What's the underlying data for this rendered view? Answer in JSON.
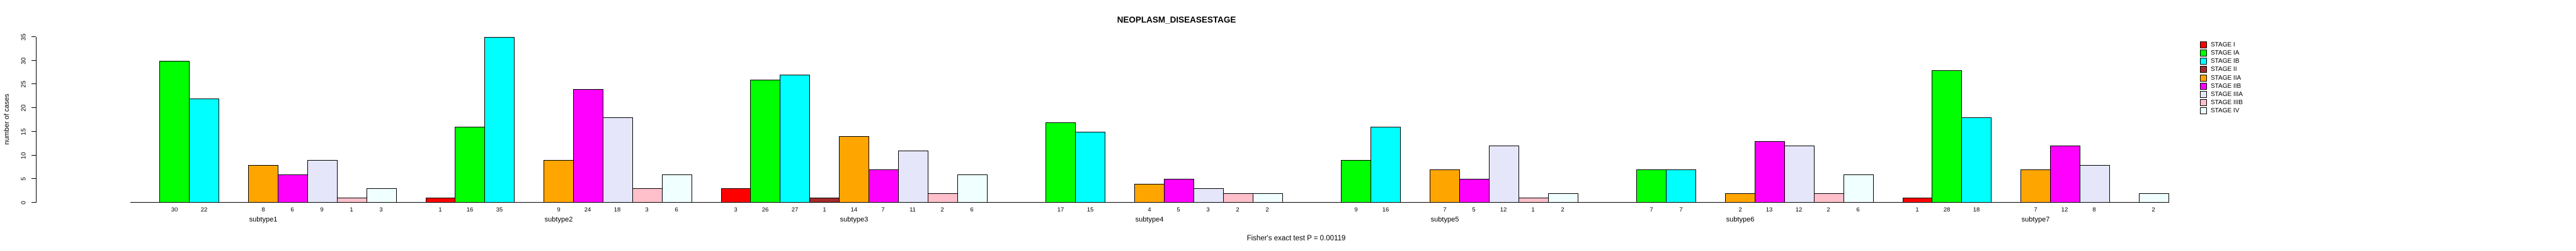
{
  "title": "NEOPLASM_DISEASESTAGE",
  "footer_note": "Fisher's exact test P = 0.00119",
  "chart_data": {
    "type": "bar",
    "title": "NEOPLASM_DISEASESTAGE",
    "ylabel": "number of cases",
    "xlabel": "",
    "ylim": [
      0,
      35
    ],
    "yticks": [
      0,
      5,
      10,
      15,
      20,
      25,
      30,
      35
    ],
    "grid": false,
    "legend_position": "right",
    "bar_value_labels_shown": true,
    "annotation": "Fisher's exact test P = 0.00119",
    "categories": [
      "subtype1",
      "subtype2",
      "subtype3",
      "subtype4",
      "subtype5",
      "subtype6",
      "subtype7"
    ],
    "series": [
      {
        "name": "STAGE I",
        "color": "#FF0000",
        "values": [
          0,
          1,
          3,
          0,
          0,
          0,
          1
        ]
      },
      {
        "name": "STAGE IA",
        "color": "#00FF00",
        "values": [
          30,
          16,
          26,
          17,
          9,
          7,
          28
        ]
      },
      {
        "name": "STAGE IB",
        "color": "#00FFFF",
        "values": [
          22,
          35,
          27,
          15,
          16,
          7,
          18
        ]
      },
      {
        "name": "STAGE II",
        "color": "#A52A2A",
        "values": [
          0,
          0,
          1,
          0,
          0,
          0,
          0
        ]
      },
      {
        "name": "STAGE IIA",
        "color": "#FFA500",
        "values": [
          8,
          9,
          14,
          4,
          7,
          2,
          7
        ]
      },
      {
        "name": "STAGE IIB",
        "color": "#FF00FF",
        "values": [
          6,
          24,
          7,
          5,
          5,
          13,
          12
        ]
      },
      {
        "name": "STAGE IIIA",
        "color": "#E6E6FA",
        "values": [
          9,
          18,
          11,
          3,
          12,
          12,
          8
        ]
      },
      {
        "name": "STAGE IIIB",
        "color": "#FFC0CB",
        "values": [
          1,
          3,
          2,
          2,
          1,
          2,
          0
        ]
      },
      {
        "name": "STAGE IV",
        "color": "#F0FFFF",
        "values": [
          3,
          6,
          6,
          2,
          2,
          6,
          2
        ]
      }
    ]
  }
}
